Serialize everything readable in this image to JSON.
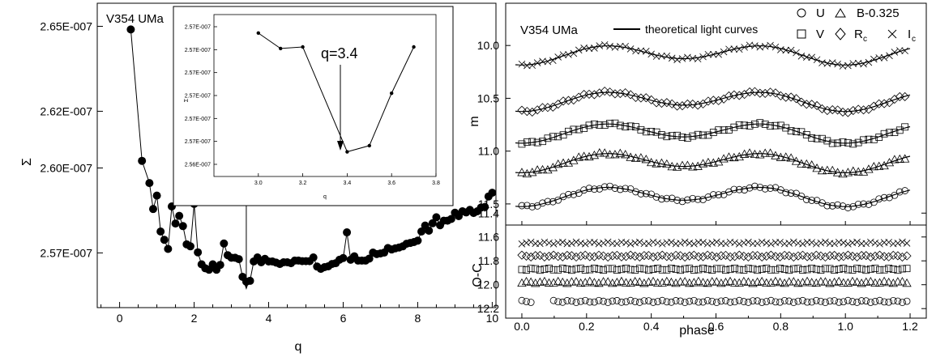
{
  "chart_data": [
    {
      "type": "scatter",
      "star_label": "V354 UMa",
      "xlabel": "q",
      "ylabel": "Σ",
      "xlim": [
        -0.6,
        10.1
      ],
      "ylim": [
        2.5512e-07,
        2.658e-07
      ],
      "xticks": [
        "0",
        "2",
        "4",
        "6",
        "8",
        "10"
      ],
      "yticks": [
        "2.57E-007",
        "2.60E-007",
        "2.62E-007",
        "2.65E-007"
      ],
      "ytick_values": [
        2.5704e-07,
        2.6002e-07,
        2.6201e-07,
        2.6499e-07
      ],
      "arrow_at_q": 3.4,
      "series": [
        {
          "x": [
            0.3,
            0.6,
            0.8,
            0.9,
            1.0,
            1.1,
            1.2,
            1.3,
            1.4,
            1.5,
            1.6,
            1.7,
            1.8,
            1.9,
            2.0,
            2.1,
            2.2,
            2.3,
            2.4,
            2.5,
            2.6,
            2.7,
            2.8,
            2.9,
            3.0,
            3.1,
            3.2,
            3.3,
            3.4,
            3.5,
            3.6,
            3.7,
            3.8,
            3.9,
            4.0,
            4.1,
            4.2,
            4.3,
            4.4,
            4.5,
            4.6,
            4.7,
            4.8,
            4.9,
            5.0,
            5.1,
            5.2,
            5.3,
            5.4,
            5.5,
            5.6,
            5.7,
            5.8,
            5.9,
            6.0,
            6.1,
            6.2,
            6.3,
            6.4,
            6.5,
            6.6,
            6.7,
            6.8,
            6.9,
            7.0,
            7.1,
            7.2,
            7.3,
            7.4,
            7.5,
            7.6,
            7.7,
            7.8,
            7.9,
            8.0,
            8.1,
            8.2,
            8.3,
            8.4,
            8.5,
            8.6,
            8.7,
            8.8,
            8.9,
            9.0,
            9.1,
            9.2,
            9.3,
            9.4,
            9.5,
            9.6,
            9.7,
            9.8,
            9.9,
            10.0
          ],
          "y": [
            2.6488e-07,
            2.6027e-07,
            2.5949e-07,
            2.5858e-07,
            2.5905e-07,
            2.5779e-07,
            2.575e-07,
            2.5718e-07,
            2.5867e-07,
            2.5807e-07,
            2.5834e-07,
            2.5798e-07,
            2.5734e-07,
            2.5727e-07,
            2.5876e-07,
            2.5706e-07,
            2.5664e-07,
            2.565e-07,
            2.5645e-07,
            2.5664e-07,
            2.5645e-07,
            2.5662e-07,
            2.5737e-07,
            2.5696e-07,
            2.5687e-07,
            2.5687e-07,
            2.5682e-07,
            2.562e-07,
            2.5603e-07,
            2.5606e-07,
            2.5674e-07,
            2.5688e-07,
            2.5671e-07,
            2.5683e-07,
            2.5674e-07,
            2.5674e-07,
            2.567e-07,
            2.5665e-07,
            2.5671e-07,
            2.5671e-07,
            2.5668e-07,
            2.5677e-07,
            2.5677e-07,
            2.5675e-07,
            2.5675e-07,
            2.5675e-07,
            2.5688e-07,
            2.5656e-07,
            2.5648e-07,
            2.5654e-07,
            2.5657e-07,
            2.5665e-07,
            2.5668e-07,
            2.568e-07,
            2.5686e-07,
            2.5776e-07,
            2.568e-07,
            2.5692e-07,
            2.5677e-07,
            2.5677e-07,
            2.5677e-07,
            2.5684e-07,
            2.5705e-07,
            2.57e-07,
            2.5702e-07,
            2.5705e-07,
            2.5721e-07,
            2.5716e-07,
            2.572e-07,
            2.5723e-07,
            2.5727e-07,
            2.5736e-07,
            2.5739e-07,
            2.5742e-07,
            2.5747e-07,
            2.5779e-07,
            2.58e-07,
            2.5782e-07,
            2.5808e-07,
            2.5829e-07,
            2.5801e-07,
            2.5817e-07,
            2.5817e-07,
            2.5823e-07,
            2.5845e-07,
            2.5833e-07,
            2.585e-07,
            2.5846e-07,
            2.5855e-07,
            2.5844e-07,
            2.585e-07,
            2.5863e-07,
            2.5865e-07,
            2.5902e-07,
            2.5915e-07
          ]
        }
      ]
    },
    {
      "type": "line",
      "xlabel": "q",
      "ylabel": "Σ",
      "xlim": [
        2.8,
        3.8
      ],
      "xticks": [
        "3.0",
        "3.2",
        "3.4",
        "3.6",
        "3.8"
      ],
      "yticks": [
        "2.56E-007",
        "2.57E-007",
        "2.57E-007",
        "2.57E-007",
        "2.57E-007",
        "2.57E-007",
        "2.57E-007"
      ],
      "annotation": "q=3.4",
      "x": [
        3.0,
        3.1,
        3.2,
        3.4,
        3.5,
        3.6,
        3.7
      ],
      "y": [
        2.5738e-07,
        2.5728e-07,
        2.5729e-07,
        2.5661e-07,
        2.5665e-07,
        2.5699e-07,
        2.5729e-07
      ]
    },
    {
      "type": "scatter",
      "star_label": "V354 UMa",
      "legend_line": "theoretical light curves",
      "legend": [
        "U",
        "B-0.325",
        "V",
        "R",
        "c",
        "I",
        "c"
      ],
      "xlabel": "phase",
      "ylabel": "m",
      "ylabel_residual": "O-C",
      "xlim": [
        -0.05,
        1.25
      ],
      "ylim_top": [
        9.6,
        11.7
      ],
      "ylim_residual": [
        11.5,
        12.28
      ],
      "xticks": [
        "0.0",
        "0.2",
        "0.4",
        "0.6",
        "0.8",
        "1.0",
        "1.2"
      ],
      "yticks_top": [
        "10.0",
        "10.5",
        "11.0",
        "11.5"
      ],
      "yticks_residual": [
        "11.4",
        "11.6",
        "11.8",
        "12.0",
        "12.2"
      ],
      "series": [
        {
          "name": "I",
          "marker": "cross",
          "base": 10.08,
          "residual": 11.65
        },
        {
          "name": "R",
          "marker": "diamond",
          "base": 10.52,
          "residual": 11.76
        },
        {
          "name": "V",
          "marker": "square",
          "base": 10.82,
          "residual": 11.87
        },
        {
          "name": "B-0.325",
          "marker": "triangle",
          "base": 11.1,
          "residual": 11.98
        },
        {
          "name": "U",
          "marker": "circle",
          "base": 11.42,
          "residual": 12.14
        }
      ]
    }
  ]
}
